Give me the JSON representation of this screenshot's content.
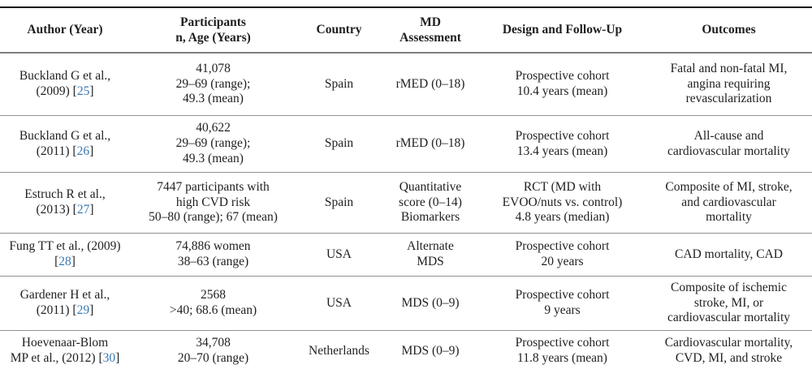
{
  "colors": {
    "reference_link": "#3679b5",
    "text": "#1f1f1f",
    "rule_heavy": "#0d0d0d",
    "rule_light": "#929292"
  },
  "table": {
    "columns": [
      "Author (Year)",
      "Participants\nn, Age (Years)",
      "Country",
      "MD\nAssessment",
      "Design and Follow-Up",
      "Outcomes"
    ],
    "rows": [
      {
        "author": "Buckland G et al.,\n(2009) [25]",
        "reference": "25",
        "participants": "41,078\n29–69 (range);\n49.3 (mean)",
        "country": "Spain",
        "md_assessment": "rMED (0–18)",
        "design_follow_up": "Prospective cohort\n10.4 years (mean)",
        "outcomes": "Fatal and non-fatal MI,\nangina requiring\nrevascularization"
      },
      {
        "author": "Buckland G et al.,\n(2011) [26]",
        "reference": "26",
        "participants": "40,622\n29–69 (range);\n49.3 (mean)",
        "country": "Spain",
        "md_assessment": "rMED (0–18)",
        "design_follow_up": "Prospective cohort\n13.4 years (mean)",
        "outcomes": "All-cause and\ncardiovascular mortality"
      },
      {
        "author": "Estruch R et al.,\n(2013) [27]",
        "reference": "27",
        "participants": "7447 participants with\nhigh CVD risk\n50–80 (range); 67 (mean)",
        "country": "Spain",
        "md_assessment": "Quantitative\nscore (0–14)\nBiomarkers",
        "design_follow_up": "RCT (MD with\nEVOO/nuts vs. control)\n4.8 years (median)",
        "outcomes": "Composite of MI, stroke,\nand cardiovascular\nmortality"
      },
      {
        "author": "Fung TT et al., (2009)\n[28]",
        "reference": "28",
        "participants": "74,886 women\n38–63 (range)",
        "country": "USA",
        "md_assessment": "Alternate\nMDS",
        "design_follow_up": "Prospective cohort\n20 years",
        "outcomes": "CAD mortality, CAD"
      },
      {
        "author": "Gardener H et al.,\n(2011) [29]",
        "reference": "29",
        "participants": "2568\n>40; 68.6 (mean)",
        "country": "USA",
        "md_assessment": "MDS (0–9)",
        "design_follow_up": "Prospective cohort\n9 years",
        "outcomes": "Composite of ischemic\nstroke, MI, or\ncardiovascular mortality"
      },
      {
        "author": "Hoevenaar-Blom\nMP et al., (2012) [30]",
        "reference": "30",
        "participants": "34,708\n20–70 (range)",
        "country": "Netherlands",
        "md_assessment": "MDS (0–9)",
        "design_follow_up": "Prospective cohort\n11.8 years (mean)",
        "outcomes": "Cardiovascular mortality,\nCVD, MI, and stroke"
      }
    ]
  }
}
